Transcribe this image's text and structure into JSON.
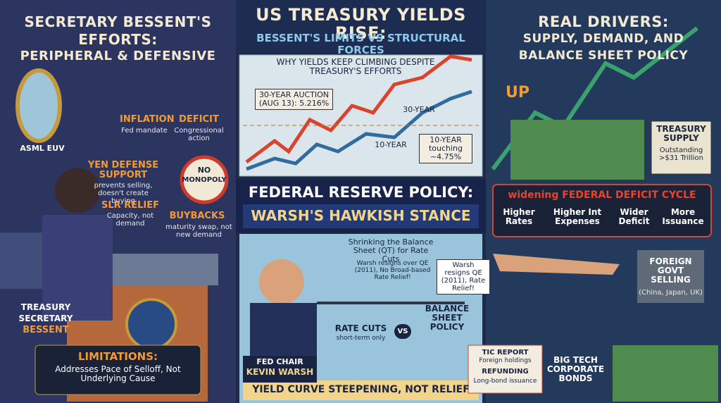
{
  "left": {
    "title": [
      "SECRETARY BESSENT'S",
      "EFFORTS:",
      "PERIPHERAL & DEFENSIVE"
    ],
    "mirror": "ASML EUV",
    "inflation": {
      "label": "INFLATION",
      "note": "Fed mandate"
    },
    "deficit": {
      "label": "DEFICIT",
      "note": "Congressional action"
    },
    "yen": {
      "label": "YEN DEFENSE SUPPORT",
      "note": "prevents selling, doesn't create buying"
    },
    "sign": [
      "NO",
      "MONOPOLY"
    ],
    "slr": {
      "label": "SLR RELIEF",
      "note": "Capacity, not demand"
    },
    "buybacks": {
      "label": "BUYBACKS",
      "note": "maturity swap, not new demand"
    },
    "person": [
      "TREASURY",
      "SECRETARY",
      "BESSENT"
    ],
    "limitations": {
      "label": "LIMITATIONS:",
      "note": "Addresses Pace of Selloff, Not Underlying Cause"
    }
  },
  "center": {
    "title": "US TREASURY YIELDS RISE:",
    "subtitle": "BESSENT'S LIMITS VS STRUCTURAL FORCES",
    "chart_title": "WHY YIELDS KEEP CLIMBING DESPITE TREASURY'S EFFORTS",
    "auction": "30-YEAR AUCTION (AUG 13): 5.216%",
    "line30": "30-YEAR",
    "line10": "10-YEAR",
    "touch": "10-YEAR touching ~4.75%",
    "fed_title": "FEDERAL RESERVE POLICY:",
    "fed_subtitle": "WARSH'S HAWKISH STANCE",
    "qt": "Shrinking the Balance Sheet (QT) for Rate Cuts",
    "qt_note": "Warsh resigns over QE (2011), No Broad-based Rate Relief!",
    "bubble": "Warsh resigns QE (2011), Rate Relief!",
    "rate_cuts": {
      "label": "RATE CUTS",
      "note": "short-term only"
    },
    "vs": "VS",
    "balance": "BALANCE SHEET POLICY",
    "chair": [
      "FED CHAIR",
      "KEVIN WARSH"
    ],
    "footer": "YIELD CURVE STEEPENING, NOT RELIEF"
  },
  "right": {
    "title": [
      "REAL DRIVERS:",
      "SUPPLY, DEMAND, AND",
      "BALANCE SHEET POLICY"
    ],
    "up": "UP",
    "supply": {
      "label": "TREASURY SUPPLY",
      "note": "Outstanding >$31 Trillion"
    },
    "cycle": {
      "label": "widening FEDERAL DEFICIT CYCLE",
      "steps": [
        "Higher Rates",
        "Higher Int Expenses",
        "Wider Deficit",
        "More Issuance"
      ]
    },
    "foreign": {
      "label": "FOREIGN GOVT SELLING",
      "note": "(China, Japan, UK)"
    },
    "tic": [
      "TIC REPORT",
      "Foreign holdings",
      "REFUNDING",
      "Long-bond issuance"
    ],
    "bigtech": "BIG TECH CORPORATE BONDS"
  }
}
